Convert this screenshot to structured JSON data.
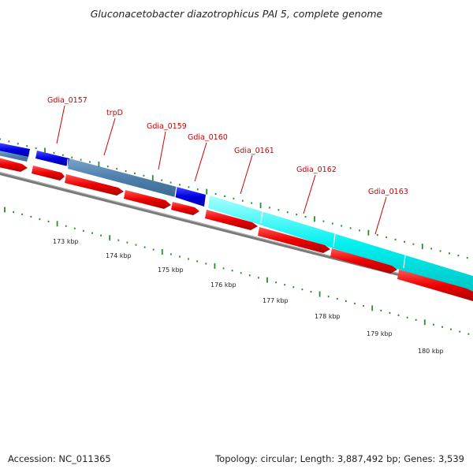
{
  "title": "Gluconacetobacter diazotrophicus PAI 5, complete genome",
  "accession": "Accession: NC_011365",
  "summary": "Topology: circular; Length: 3,887,492 bp; Genes: 3,539",
  "gene_labels": [
    "Gdia_0157",
    "trpD",
    "Gdia_0159",
    "Gdia_0160",
    "Gdia_0161",
    "Gdia_0162",
    "Gdia_0163"
  ],
  "kbp_labels": [
    "173 kbp",
    "174 kbp",
    "175 kbp",
    "176 kbp",
    "177 kbp",
    "178 kbp",
    "179 kbp",
    "180 kbp"
  ],
  "colors": {
    "gene_label": "#cc0000",
    "cds_arrow": "#ee0000",
    "tick": "#2e8b2e",
    "backbone": "#808080",
    "feature_blue": "#0000e0",
    "feature_steel": "#4f7fad",
    "feature_cyan": "#00f0f0"
  }
}
